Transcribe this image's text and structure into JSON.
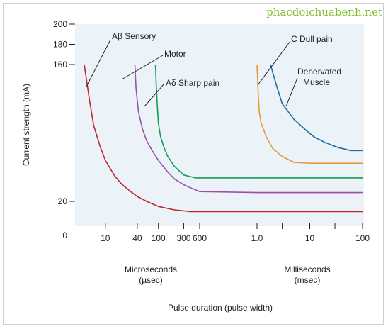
{
  "watermark": "phacdoichuabenh.net",
  "chart_data": {
    "type": "line",
    "title": "",
    "ylabel": "Current strength (mA)",
    "xlabel": "Pulse duration (pulse width)",
    "x_groups": [
      {
        "label": "Microseconds",
        "unit": "(µsec)"
      },
      {
        "label": "Milliseconds",
        "unit": "(msec)"
      }
    ],
    "y_ticks": [
      "200",
      "180",
      "160",
      "20",
      "0"
    ],
    "y_tick_values": [
      200,
      180,
      160,
      20,
      0
    ],
    "x_ticks": [
      "10",
      "40",
      "100",
      "300",
      "600",
      "1.0",
      "10",
      "100"
    ],
    "grid": false,
    "series": [
      {
        "name": "Aβ Sensory",
        "color": "#c0272d",
        "points": [
          [
            4,
            160
          ],
          [
            5,
            124
          ],
          [
            6,
            98
          ],
          [
            8,
            76
          ],
          [
            10,
            62
          ],
          [
            15,
            46
          ],
          [
            20,
            38
          ],
          [
            30,
            30
          ],
          [
            40,
            25
          ],
          [
            60,
            20
          ],
          [
            100,
            17
          ],
          [
            200,
            15
          ],
          [
            400,
            14
          ],
          [
            600,
            14
          ],
          [
            1000,
            14
          ],
          [
            100000,
            14
          ]
        ]
      },
      {
        "name": "Motor",
        "color": "#9b4fa8",
        "points": [
          [
            36,
            160
          ],
          [
            38,
            135
          ],
          [
            42,
            112
          ],
          [
            50,
            94
          ],
          [
            60,
            82
          ],
          [
            80,
            70
          ],
          [
            100,
            62
          ],
          [
            150,
            50
          ],
          [
            200,
            43
          ],
          [
            300,
            37
          ],
          [
            400,
            34
          ],
          [
            600,
            30
          ],
          [
            1000,
            29
          ],
          [
            100000,
            29
          ]
        ]
      },
      {
        "name": "Aδ Sharp pain",
        "color": "#1a9a5a",
        "points": [
          [
            88,
            160
          ],
          [
            91,
            140
          ],
          [
            95,
            120
          ],
          [
            100,
            100
          ],
          [
            110,
            86
          ],
          [
            130,
            74
          ],
          [
            150,
            66
          ],
          [
            200,
            56
          ],
          [
            250,
            51
          ],
          [
            300,
            47
          ],
          [
            500,
            44
          ],
          [
            1000,
            44
          ],
          [
            100000,
            44
          ]
        ]
      },
      {
        "name": "C Dull pain",
        "color": "#e59a3a",
        "points": [
          [
            1000,
            160
          ],
          [
            1050,
            132
          ],
          [
            1100,
            112
          ],
          [
            1200,
            100
          ],
          [
            1500,
            86
          ],
          [
            2000,
            74
          ],
          [
            3000,
            66
          ],
          [
            5000,
            60
          ],
          [
            10000,
            59
          ],
          [
            100000,
            59
          ]
        ]
      },
      {
        "name": "Denervated Muscle",
        "color": "#1f6e9f",
        "points": [
          [
            1800,
            160
          ],
          [
            2300,
            140
          ],
          [
            3000,
            120
          ],
          [
            5000,
            104
          ],
          [
            8000,
            94
          ],
          [
            12000,
            86
          ],
          [
            20000,
            80
          ],
          [
            35000,
            75
          ],
          [
            60000,
            72
          ],
          [
            100000,
            72
          ]
        ]
      }
    ],
    "curve_labels": [
      "Aβ Sensory",
      "Motor",
      "Aδ Sharp pain",
      "C Dull pain",
      "Denervated",
      "Muscle"
    ]
  }
}
